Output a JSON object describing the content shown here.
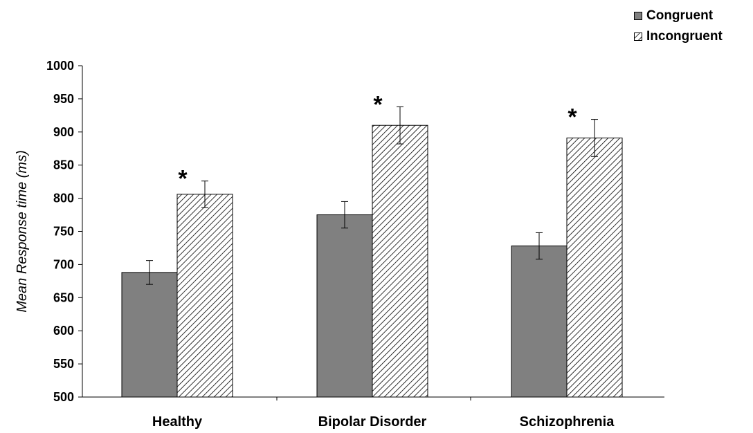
{
  "chart_data": {
    "type": "bar",
    "categories": [
      "Healthy",
      "Bipolar Disorder",
      "Schizophrenia"
    ],
    "series": [
      {
        "name": "Congruent",
        "values": [
          688,
          775,
          728
        ],
        "errors": [
          18,
          20,
          20
        ],
        "color": "#808080",
        "fill": "solid"
      },
      {
        "name": "Incongruent",
        "values": [
          806,
          910,
          891
        ],
        "errors": [
          20,
          28,
          28
        ],
        "color": "#ffffff",
        "fill": "diagonal-hatch"
      }
    ],
    "annotations": [
      "*",
      "*",
      "*"
    ],
    "title": "",
    "xlabel": "",
    "ylabel": "Mean Response time (ms)",
    "ylim": [
      500,
      1000
    ],
    "yticks": [
      500,
      550,
      600,
      650,
      700,
      750,
      800,
      850,
      900,
      950,
      1000
    ],
    "grid": false,
    "legend_position": "top-right"
  }
}
